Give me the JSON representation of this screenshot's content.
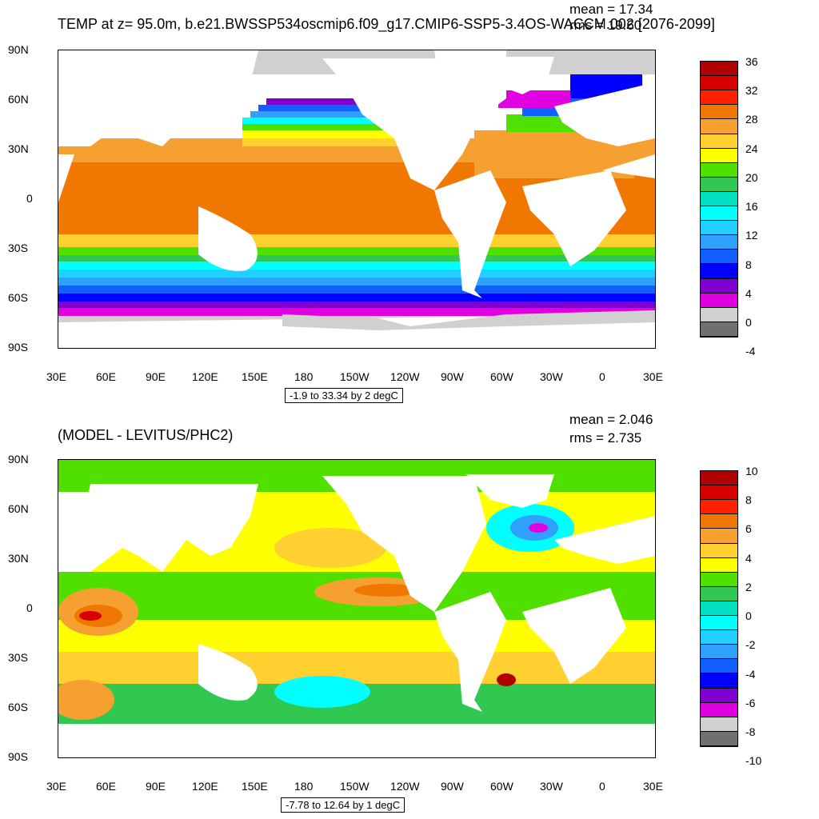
{
  "panel_top": {
    "title": "TEMP at z=  95.0m, b.e21.BWSSP534oscmip6.f09_g17.CMIP6-SSP5-3.4OS-WACCM.002 [2076-2099]",
    "mean_label": "mean = 17.34",
    "rms_label": "rms = 19.60",
    "range_note": "-1.9 to 33.34 by 2 degC",
    "colorbar_labels": [
      "36",
      "32",
      "28",
      "24",
      "20",
      "16",
      "12",
      "8",
      "4",
      "0",
      "-4"
    ],
    "colorbar_colors": [
      "#b00000",
      "#d80000",
      "#ff2000",
      "#f07800",
      "#f5a030",
      "#ffd030",
      "#ffff00",
      "#50e000",
      "#30c850",
      "#00e0c0",
      "#00ffff",
      "#20d0ff",
      "#30a0ff",
      "#1060ff",
      "#0000ff",
      "#8000d0",
      "#e000e0",
      "#d0d0d0",
      "#707070"
    ]
  },
  "panel_bottom": {
    "title": "(MODEL - LEVITUS/PHC2)",
    "mean_label": "mean = 2.046",
    "rms_label": "rms = 2.735",
    "range_note": "-7.78 to 12.64 by 1 degC",
    "colorbar_labels": [
      "10",
      "8",
      "6",
      "4",
      "2",
      "0",
      "-2",
      "-4",
      "-6",
      "-8",
      "-10"
    ],
    "colorbar_colors": [
      "#b00000",
      "#d80000",
      "#ff2000",
      "#f07800",
      "#f5a030",
      "#ffd030",
      "#ffff00",
      "#50e000",
      "#30c850",
      "#00e0c0",
      "#00ffff",
      "#20d0ff",
      "#30a0ff",
      "#1060ff",
      "#0000ff",
      "#8000d0",
      "#e000e0",
      "#d0d0d0",
      "#707070"
    ]
  },
  "axes": {
    "lat_labels": [
      "90N",
      "60N",
      "30N",
      "0",
      "30S",
      "60S",
      "90S"
    ],
    "lon_labels": [
      "30E",
      "60E",
      "90E",
      "120E",
      "150E",
      "180",
      "150W",
      "120W",
      "90W",
      "60W",
      "30W",
      "0",
      "30E"
    ]
  },
  "colors": {
    "land": "#ffffff",
    "ice": "#d0d0d0"
  }
}
